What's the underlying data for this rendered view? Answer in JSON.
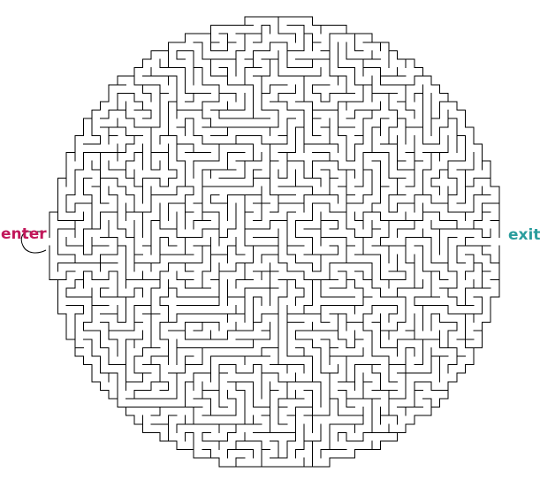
{
  "maze": {
    "shape": "circle",
    "wall_color": "#000000",
    "background_color": "#ffffff"
  },
  "labels": {
    "enter": {
      "text": "enter",
      "color": "#c2185b"
    },
    "exit": {
      "text": "exit",
      "color": "#2a9d9d"
    }
  },
  "start_marker": {
    "icon": "loop-arrow-icon",
    "color": "#000000"
  }
}
